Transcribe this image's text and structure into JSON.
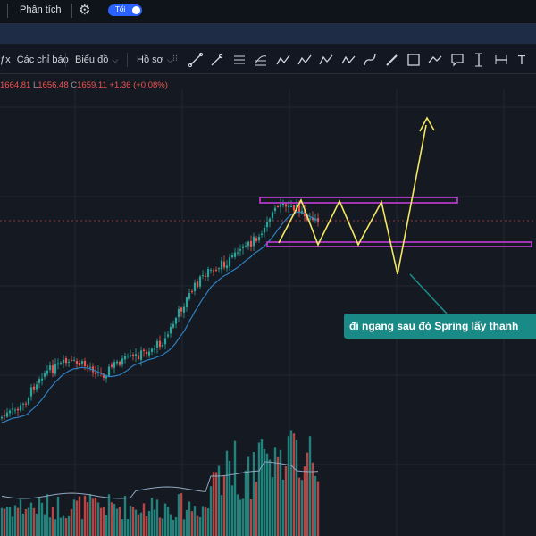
{
  "topbar": {
    "menu_label": "Phân tích",
    "toggle_label": "Tối"
  },
  "toolbar": {
    "indicators_label": "Các chỉ báo",
    "chart_label": "Biểu đồ",
    "profile_label": "Hồ sơ"
  },
  "ohlc": {
    "h_key": "",
    "h_val": "1664.81",
    "l_key": "L",
    "l_val": "1656.48",
    "c_key": "C",
    "c_val": "1659.11",
    "change": "+1.36 (+0.08%)"
  },
  "annotation": {
    "text": "đi ngang sau đó Spring lấy thanh"
  },
  "colors": {
    "up": "#26a69a",
    "down": "#ef5350",
    "ma": "#2f7fc1",
    "zone": "#c23cd6",
    "path": "#f5e663",
    "note_bg": "#1a8a87",
    "band": "#1f2c45"
  },
  "icons": [
    "trend-line-icon",
    "ray-icon",
    "parallel-channel-icon",
    "fib-icon",
    "pitchfork-icon",
    "abcd-pattern-icon",
    "elliott-wave-icon",
    "xabcd-icon",
    "brush-icon",
    "pen-icon",
    "rectangle-icon",
    "path-icon",
    "comment-icon",
    "long-position-icon",
    "measure-icon",
    "text-icon"
  ]
}
